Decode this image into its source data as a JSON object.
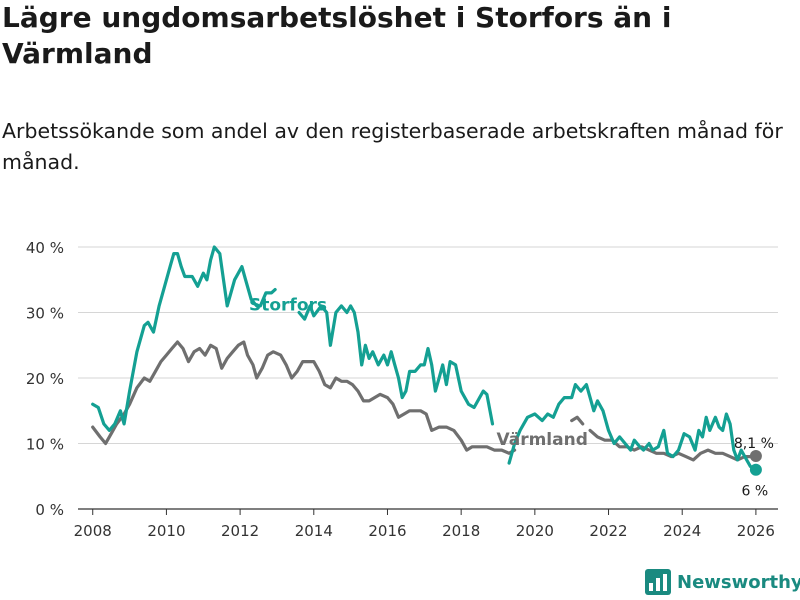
{
  "title": "Lägre ungdomsarbetslöshet i Storfors än i Värmland",
  "subtitle": "Arbetssökande som andel av den registerbaserade arbetskraften månad för månad.",
  "brand": {
    "name": "Newsworthy"
  },
  "colors": {
    "storfors": "#14a093",
    "varmland": "#6f6f6f",
    "grid": "#d6d6d6",
    "axis": "#333333"
  },
  "chart_data": {
    "type": "line",
    "title": "Lägre ungdomsarbetslöshet i Storfors än i Värmland",
    "xlabel": "",
    "ylabel": "",
    "xlim": [
      2007.6,
      2026.6
    ],
    "ylim": [
      0,
      40
    ],
    "x_ticks": [
      2008,
      2010,
      2012,
      2014,
      2016,
      2018,
      2020,
      2022,
      2024,
      2026
    ],
    "x_tick_labels": [
      "2008",
      "2010",
      "2012",
      "2014",
      "2016",
      "2018",
      "2020",
      "2022",
      "2024",
      "2026"
    ],
    "y_ticks": [
      0,
      10,
      20,
      30,
      40
    ],
    "y_tick_labels": [
      "0 %",
      "10 %",
      "20 %",
      "30 %",
      "40 %"
    ],
    "grid": true,
    "series": [
      {
        "name": "Storfors",
        "color": "#14a093",
        "end_label": "6 %",
        "points": [
          [
            2008.0,
            16
          ],
          [
            2008.15,
            15.5
          ],
          [
            2008.3,
            13
          ],
          [
            2008.45,
            12
          ],
          [
            2008.6,
            13
          ],
          [
            2008.75,
            15
          ],
          [
            2008.85,
            13
          ],
          [
            2009.0,
            18
          ],
          [
            2009.2,
            24
          ],
          [
            2009.4,
            28
          ],
          [
            2009.5,
            28.5
          ],
          [
            2009.65,
            27
          ],
          [
            2009.8,
            31
          ],
          [
            2009.95,
            34
          ],
          [
            2010.1,
            37
          ],
          [
            2010.2,
            39
          ],
          [
            2010.3,
            39
          ],
          [
            2010.4,
            37
          ],
          [
            2010.5,
            35.5
          ],
          [
            2010.7,
            35.5
          ],
          [
            2010.85,
            34
          ],
          [
            2011.0,
            36
          ],
          [
            2011.1,
            35
          ],
          [
            2011.2,
            38
          ],
          [
            2011.3,
            40
          ],
          [
            2011.45,
            39
          ],
          [
            2011.55,
            35
          ],
          [
            2011.65,
            31
          ],
          [
            2011.75,
            33
          ],
          [
            2011.85,
            35
          ],
          [
            2011.95,
            36
          ],
          [
            2012.05,
            37
          ],
          [
            2012.15,
            35
          ],
          [
            2012.3,
            32
          ],
          [
            2012.45,
            31
          ],
          [
            2012.55,
            31
          ],
          [
            2012.7,
            33
          ],
          [
            2012.85,
            33
          ],
          [
            2012.95,
            33.5
          ],
          [
            2013.0,
            null
          ],
          [
            2013.6,
            30
          ],
          [
            2013.75,
            29
          ],
          [
            2013.9,
            31
          ],
          [
            2014.0,
            29.5
          ],
          [
            2014.2,
            31
          ],
          [
            2014.35,
            30
          ],
          [
            2014.45,
            25
          ],
          [
            2014.6,
            30
          ],
          [
            2014.75,
            31
          ],
          [
            2014.9,
            30
          ],
          [
            2015.0,
            31
          ],
          [
            2015.1,
            30
          ],
          [
            2015.2,
            27
          ],
          [
            2015.3,
            22
          ],
          [
            2015.4,
            25
          ],
          [
            2015.5,
            23
          ],
          [
            2015.6,
            24
          ],
          [
            2015.75,
            22
          ],
          [
            2015.9,
            23.5
          ],
          [
            2016.0,
            22
          ],
          [
            2016.1,
            24
          ],
          [
            2016.2,
            22
          ],
          [
            2016.3,
            20
          ],
          [
            2016.4,
            17
          ],
          [
            2016.5,
            18
          ],
          [
            2016.6,
            21
          ],
          [
            2016.75,
            21
          ],
          [
            2016.9,
            22
          ],
          [
            2017.0,
            22
          ],
          [
            2017.1,
            24.5
          ],
          [
            2017.2,
            22
          ],
          [
            2017.3,
            18
          ],
          [
            2017.4,
            20
          ],
          [
            2017.5,
            22
          ],
          [
            2017.6,
            19
          ],
          [
            2017.7,
            22.5
          ],
          [
            2017.85,
            22
          ],
          [
            2018.0,
            18
          ],
          [
            2018.2,
            16
          ],
          [
            2018.35,
            15.5
          ],
          [
            2018.5,
            17
          ],
          [
            2018.6,
            18
          ],
          [
            2018.7,
            17.5
          ],
          [
            2018.85,
            13
          ],
          [
            2018.95,
            null
          ],
          [
            2019.3,
            7
          ],
          [
            2019.45,
            10
          ],
          [
            2019.6,
            12
          ],
          [
            2019.8,
            14
          ],
          [
            2020.0,
            14.5
          ],
          [
            2020.2,
            13.5
          ],
          [
            2020.35,
            14.5
          ],
          [
            2020.5,
            14
          ],
          [
            2020.65,
            16
          ],
          [
            2020.8,
            17
          ],
          [
            2021.0,
            17
          ],
          [
            2021.1,
            19
          ],
          [
            2021.25,
            18
          ],
          [
            2021.4,
            19
          ],
          [
            2021.5,
            17
          ],
          [
            2021.6,
            15
          ],
          [
            2021.7,
            16.5
          ],
          [
            2021.85,
            15
          ],
          [
            2022.0,
            12
          ],
          [
            2022.15,
            10
          ],
          [
            2022.3,
            11
          ],
          [
            2022.45,
            10
          ],
          [
            2022.6,
            9
          ],
          [
            2022.7,
            10.5
          ],
          [
            2022.85,
            9.5
          ],
          [
            2022.95,
            9
          ],
          [
            2023.1,
            10
          ],
          [
            2023.2,
            9
          ],
          [
            2023.35,
            9.5
          ],
          [
            2023.5,
            12
          ],
          [
            2023.6,
            8.5
          ],
          [
            2023.75,
            8
          ],
          [
            2023.9,
            9
          ],
          [
            2024.05,
            11.5
          ],
          [
            2024.2,
            11
          ],
          [
            2024.35,
            9
          ],
          [
            2024.45,
            12
          ],
          [
            2024.55,
            11
          ],
          [
            2024.65,
            14
          ],
          [
            2024.75,
            12
          ],
          [
            2024.9,
            14
          ],
          [
            2025.0,
            12.5
          ],
          [
            2025.1,
            12
          ],
          [
            2025.2,
            14.5
          ],
          [
            2025.3,
            13
          ],
          [
            2025.4,
            9
          ],
          [
            2025.5,
            7.5
          ],
          [
            2025.6,
            9
          ],
          [
            2025.7,
            8
          ],
          [
            2025.85,
            6.5
          ],
          [
            2026.0,
            6
          ]
        ]
      },
      {
        "name": "Värmland",
        "color": "#6f6f6f",
        "end_label": "8,1 %",
        "points": [
          [
            2008.0,
            12.5
          ],
          [
            2008.2,
            11
          ],
          [
            2008.35,
            10
          ],
          [
            2008.5,
            11.5
          ],
          [
            2008.65,
            13
          ],
          [
            2008.85,
            14.5
          ],
          [
            2009.0,
            16
          ],
          [
            2009.2,
            18.5
          ],
          [
            2009.4,
            20
          ],
          [
            2009.55,
            19.5
          ],
          [
            2009.7,
            21
          ],
          [
            2009.85,
            22.5
          ],
          [
            2010.0,
            23.5
          ],
          [
            2010.15,
            24.5
          ],
          [
            2010.3,
            25.5
          ],
          [
            2010.45,
            24.5
          ],
          [
            2010.6,
            22.5
          ],
          [
            2010.75,
            24
          ],
          [
            2010.9,
            24.5
          ],
          [
            2011.05,
            23.5
          ],
          [
            2011.2,
            25
          ],
          [
            2011.35,
            24.5
          ],
          [
            2011.5,
            21.5
          ],
          [
            2011.65,
            23
          ],
          [
            2011.8,
            24
          ],
          [
            2011.95,
            25
          ],
          [
            2012.1,
            25.5
          ],
          [
            2012.2,
            23.5
          ],
          [
            2012.35,
            22
          ],
          [
            2012.45,
            20
          ],
          [
            2012.6,
            21.5
          ],
          [
            2012.75,
            23.5
          ],
          [
            2012.9,
            24
          ],
          [
            2013.1,
            23.5
          ],
          [
            2013.25,
            22
          ],
          [
            2013.4,
            20
          ],
          [
            2013.55,
            21
          ],
          [
            2013.7,
            22.5
          ],
          [
            2013.85,
            22.5
          ],
          [
            2014.0,
            22.5
          ],
          [
            2014.15,
            21
          ],
          [
            2014.3,
            19
          ],
          [
            2014.45,
            18.5
          ],
          [
            2014.6,
            20
          ],
          [
            2014.75,
            19.5
          ],
          [
            2014.9,
            19.5
          ],
          [
            2015.05,
            19
          ],
          [
            2015.2,
            18
          ],
          [
            2015.35,
            16.5
          ],
          [
            2015.5,
            16.5
          ],
          [
            2015.65,
            17
          ],
          [
            2015.8,
            17.5
          ],
          [
            2016.0,
            17
          ],
          [
            2016.15,
            16
          ],
          [
            2016.3,
            14
          ],
          [
            2016.45,
            14.5
          ],
          [
            2016.6,
            15
          ],
          [
            2016.75,
            15
          ],
          [
            2016.9,
            15
          ],
          [
            2017.05,
            14.5
          ],
          [
            2017.2,
            12
          ],
          [
            2017.4,
            12.5
          ],
          [
            2017.6,
            12.5
          ],
          [
            2017.8,
            12
          ],
          [
            2018.0,
            10.5
          ],
          [
            2018.15,
            9
          ],
          [
            2018.3,
            9.5
          ],
          [
            2018.5,
            9.5
          ],
          [
            2018.7,
            9.5
          ],
          [
            2018.9,
            9
          ],
          [
            2019.1,
            9
          ],
          [
            2019.3,
            8.5
          ],
          [
            2019.45,
            9
          ],
          [
            2019.55,
            null
          ],
          [
            2021.0,
            13.5
          ],
          [
            2021.15,
            14
          ],
          [
            2021.3,
            13
          ],
          [
            2021.4,
            null
          ],
          [
            2021.5,
            12
          ],
          [
            2021.7,
            11
          ],
          [
            2021.9,
            10.5
          ],
          [
            2022.1,
            10.5
          ],
          [
            2022.3,
            9.5
          ],
          [
            2022.5,
            9.5
          ],
          [
            2022.7,
            9
          ],
          [
            2022.9,
            9.5
          ],
          [
            2023.1,
            9
          ],
          [
            2023.3,
            8.5
          ],
          [
            2023.5,
            8.5
          ],
          [
            2023.7,
            8
          ],
          [
            2023.9,
            8.5
          ],
          [
            2024.1,
            8
          ],
          [
            2024.3,
            7.5
          ],
          [
            2024.5,
            8.5
          ],
          [
            2024.7,
            9
          ],
          [
            2024.9,
            8.5
          ],
          [
            2025.1,
            8.5
          ],
          [
            2025.3,
            8
          ],
          [
            2025.5,
            7.5
          ],
          [
            2025.7,
            8
          ],
          [
            2025.85,
            8
          ],
          [
            2026.0,
            8.1
          ]
        ]
      }
    ],
    "annotations": [
      {
        "text": "Storfors",
        "series": "Storfors"
      },
      {
        "text": "Värmland",
        "series": "Värmland"
      }
    ]
  }
}
